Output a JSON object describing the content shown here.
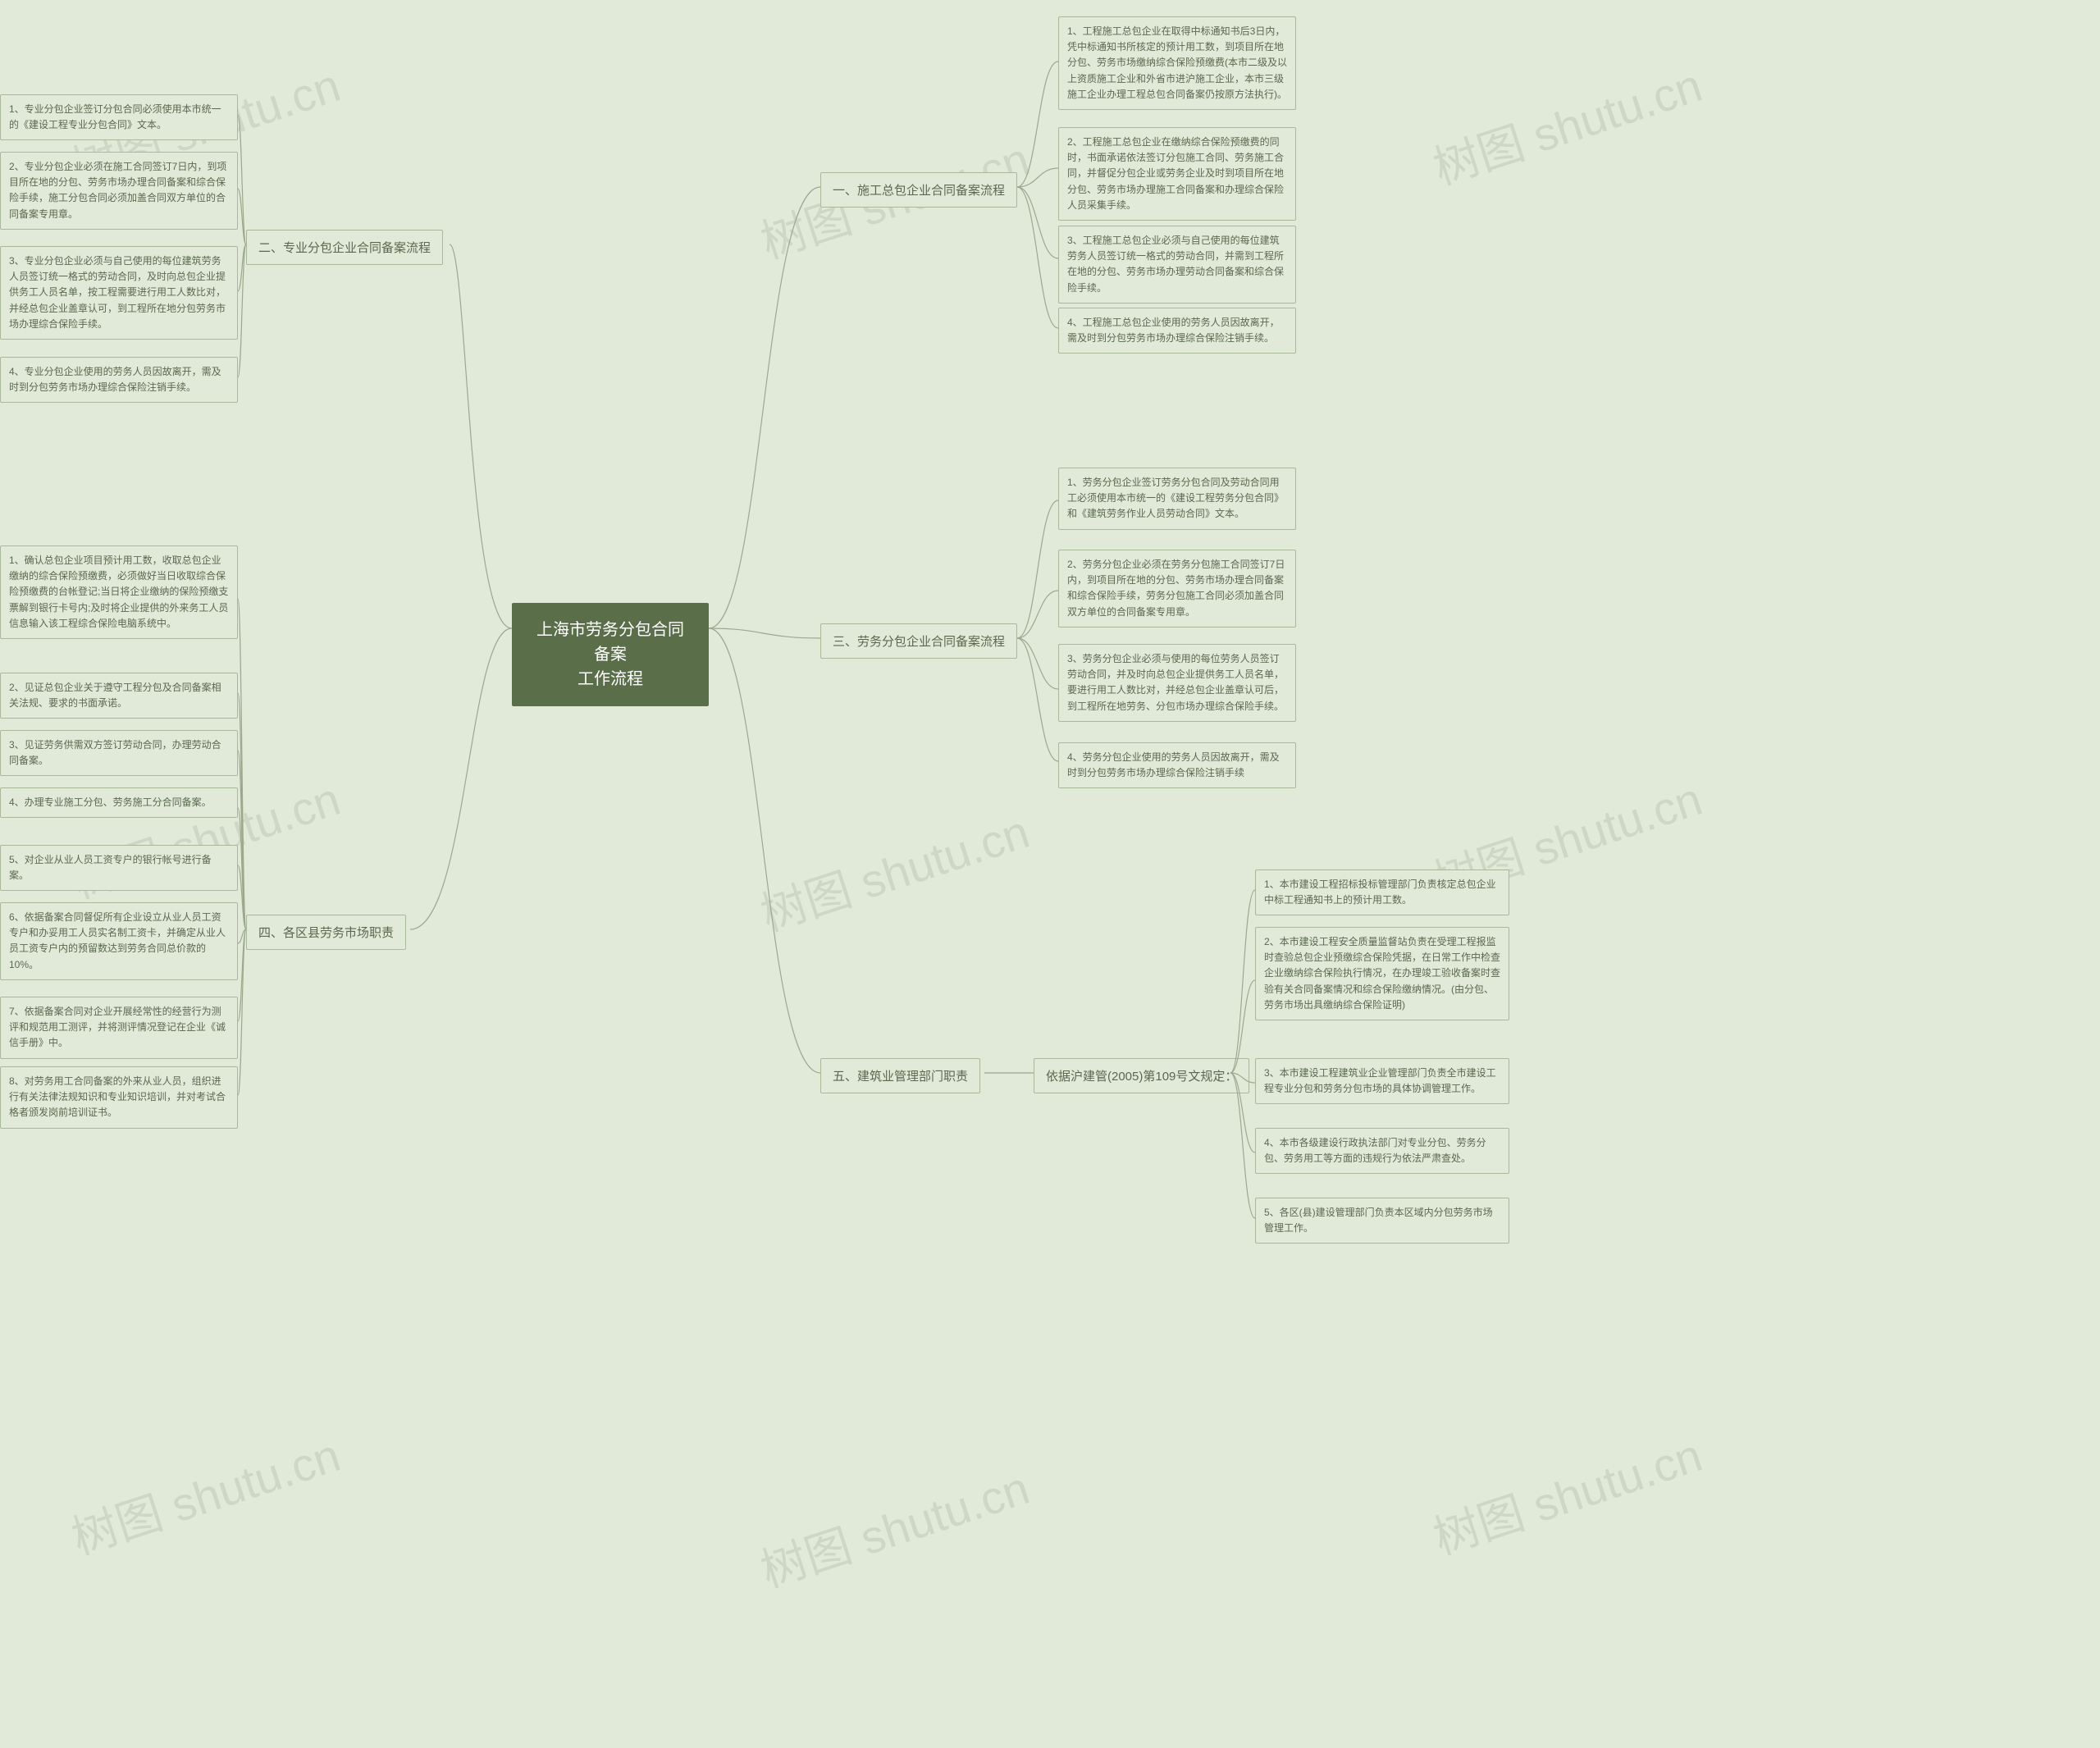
{
  "colors": {
    "background": "#e1ead8",
    "root_bg": "#5b6e4a",
    "root_text": "#ffffff",
    "node_border": "#a8b89a",
    "node_text": "#5a6850",
    "connector": "#9ba88f",
    "watermark": "rgba(120,130,110,0.18)"
  },
  "typography": {
    "root_fontsize": 20,
    "branch_fontsize": 15,
    "leaf_fontsize": 12
  },
  "watermark_text": "树图 shutu.cn",
  "root": {
    "title": "上海市劳务分包合同备案\n工作流程"
  },
  "branches": [
    {
      "id": "b1",
      "side": "right",
      "label": "一、施工总包企业合同备案流程",
      "children": [
        "1、工程施工总包企业在取得中标通知书后3日内，凭中标通知书所核定的预计用工数，到项目所在地分包、劳务市场缴纳综合保险预缴费(本市二级及以上资质施工企业和外省市进沪施工企业，本市三级施工企业办理工程总包合同备案仍按原方法执行)。",
        "2、工程施工总包企业在缴纳综合保险预缴费的同时，书面承诺依法签订分包施工合同、劳务施工合同，并督促分包企业或劳务企业及时到项目所在地分包、劳务市场办理施工合同备案和办理综合保险人员采集手续。",
        "3、工程施工总包企业必须与自己使用的每位建筑劳务人员签订统一格式的劳动合同，并需到工程所在地的分包、劳务市场办理劳动合同备案和综合保险手续。",
        "4、工程施工总包企业使用的劳务人员因故离开，需及时到分包劳务市场办理综合保险注销手续。"
      ]
    },
    {
      "id": "b3",
      "side": "right",
      "label": "三、劳务分包企业合同备案流程",
      "children": [
        "1、劳务分包企业签订劳务分包合同及劳动合同用工必须使用本市统一的《建设工程劳务分包合同》和《建筑劳务作业人员劳动合同》文本。",
        "2、劳务分包企业必须在劳务分包施工合同签订7日内，到项目所在地的分包、劳务市场办理合同备案和综合保险手续，劳务分包施工合同必须加盖合同双方单位的合同备案专用章。",
        "3、劳务分包企业必须与使用的每位劳务人员签订劳动合同，并及时向总包企业提供务工人员名单，要进行用工人数比对，并经总包企业盖章认可后，到工程所在地劳务、分包市场办理综合保险手续。",
        "4、劳务分包企业使用的劳务人员因故离开，需及时到分包劳务市场办理综合保险注销手续"
      ]
    },
    {
      "id": "b5",
      "side": "right",
      "label": "五、建筑业管理部门职责",
      "sub_label": "依据沪建管(2005)第109号文规定：",
      "children": [
        "1、本市建设工程招标投标管理部门负责核定总包企业中标工程通知书上的预计用工数。",
        "2、本市建设工程安全质量监督站负责在受理工程报监时查验总包企业预缴综合保险凭据，在日常工作中检查企业缴纳综合保险执行情况，在办理竣工验收备案时查验有关合同备案情况和综合保险缴纳情况。(由分包、劳务市场出具缴纳综合保险证明)",
        "3、本市建设工程建筑业企业管理部门负责全市建设工程专业分包和劳务分包市场的具体协调管理工作。",
        "4、本市各级建设行政执法部门对专业分包、劳务分包、劳务用工等方面的违规行为依法严肃查处。",
        "5、各区(县)建设管理部门负责本区域内分包劳务市场管理工作。"
      ]
    },
    {
      "id": "b2",
      "side": "left",
      "label": "二、专业分包企业合同备案流程",
      "children": [
        "1、专业分包企业签订分包合同必须使用本市统一的《建设工程专业分包合同》文本。",
        "2、专业分包企业必须在施工合同签订7日内，到项目所在地的分包、劳务市场办理合同备案和综合保险手续，施工分包合同必须加盖合同双方单位的合同备案专用章。",
        "3、专业分包企业必须与自己使用的每位建筑劳务人员签订统一格式的劳动合同，及时向总包企业提供务工人员名单，按工程需要进行用工人数比对，并经总包企业盖章认可，到工程所在地分包劳务市场办理综合保险手续。",
        "4、专业分包企业使用的劳务人员因故离开，需及时到分包劳务市场办理综合保险注销手续。"
      ]
    },
    {
      "id": "b4",
      "side": "left",
      "label": "四、各区县劳务市场职责",
      "children": [
        "1、确认总包企业项目预计用工数，收取总包企业缴纳的综合保险预缴费，必须做好当日收取综合保险预缴费的台帐登记;当日将企业缴纳的保险预缴支票解到银行卡号内;及时将企业提供的外来务工人员信息输入该工程综合保险电脑系统中。",
        "2、见证总包企业关于遵守工程分包及合同备案相关法规、要求的书面承诺。",
        "3、见证劳务供需双方签订劳动合同，办理劳动合同备案。",
        "4、办理专业施工分包、劳务施工分合同备案。",
        "5、对企业从业人员工资专户的银行帐号进行备案。",
        "6、依据备案合同督促所有企业设立从业人员工资专户和办妥用工人员实名制工资卡，并确定从业人员工资专户内的预留数达到劳务合同总价款的10%。",
        "7、依据备案合同对企业开展经常性的经营行为测评和规范用工测评，并将测评情况登记在企业《诚信手册》中。",
        "8、对劳务用工合同备案的外来从业人员，组织进行有关法律法规知识和专业知识培训，并对考试合格者颁发岗前培训证书。"
      ]
    }
  ]
}
